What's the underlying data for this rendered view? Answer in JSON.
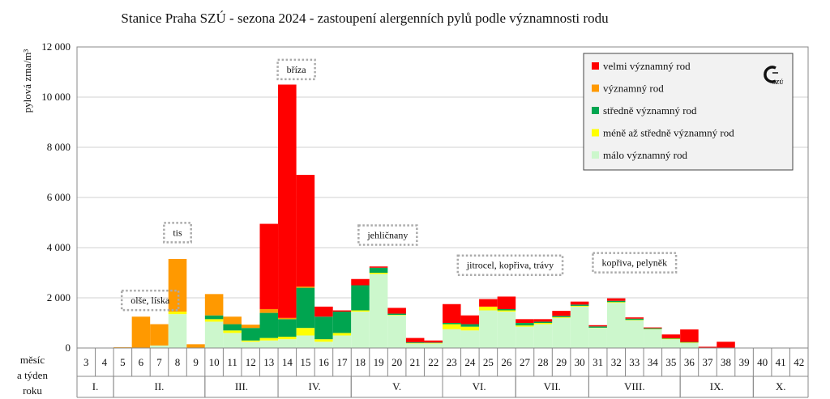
{
  "chart_data": {
    "type": "bar",
    "stacked": true,
    "title": "Stanice Praha SZÚ - sezona 2024 - zastoupení alergenních pylů podle významnosti rodu",
    "ylabel": "pylová zrna/m³",
    "ylim": [
      0,
      12000
    ],
    "yticks": [
      0,
      2000,
      4000,
      6000,
      8000,
      10000,
      12000
    ],
    "ytick_labels": [
      "0",
      "2 000",
      "4 000",
      "6 000",
      "8 000",
      "10 000",
      "12 000"
    ],
    "grid": true,
    "legend_position": "top-right",
    "xlabel_lines": [
      "měsíc",
      "a týden",
      "roku"
    ],
    "categories": [
      3,
      4,
      5,
      6,
      7,
      8,
      9,
      10,
      11,
      12,
      13,
      14,
      15,
      16,
      17,
      18,
      19,
      20,
      21,
      22,
      23,
      24,
      25,
      26,
      27,
      28,
      29,
      30,
      31,
      32,
      33,
      34,
      35,
      36,
      37,
      38,
      39,
      40,
      41,
      42
    ],
    "months": [
      {
        "label": "I.",
        "from": 3,
        "to": 4
      },
      {
        "label": "II.",
        "from": 5,
        "to": 9
      },
      {
        "label": "III.",
        "from": 10,
        "to": 13
      },
      {
        "label": "IV.",
        "from": 14,
        "to": 17
      },
      {
        "label": "V.",
        "from": 18,
        "to": 22
      },
      {
        "label": "VI.",
        "from": 23,
        "to": 26
      },
      {
        "label": "VII.",
        "from": 27,
        "to": 30
      },
      {
        "label": "VIII.",
        "from": 31,
        "to": 35
      },
      {
        "label": "IX.",
        "from": 36,
        "to": 39
      },
      {
        "label": "X.",
        "from": 40,
        "to": 42
      }
    ],
    "series": [
      {
        "name": "málo významný rod",
        "color": "#ccf7cc",
        "values": [
          0,
          0,
          0,
          0,
          100,
          1350,
          0,
          1050,
          600,
          250,
          300,
          350,
          500,
          250,
          500,
          1450,
          2950,
          1300,
          180,
          180,
          750,
          700,
          1500,
          1450,
          850,
          950,
          1200,
          1650,
          800,
          1800,
          1100,
          750,
          350,
          200,
          0,
          0,
          0,
          0,
          0,
          0
        ]
      },
      {
        "name": "méně až středně významný rod",
        "color": "#ffff00",
        "values": [
          0,
          0,
          0,
          0,
          0,
          100,
          0,
          100,
          100,
          50,
          100,
          100,
          300,
          100,
          100,
          50,
          50,
          20,
          20,
          20,
          200,
          150,
          150,
          50,
          50,
          50,
          30,
          30,
          10,
          30,
          20,
          10,
          20,
          20,
          0,
          0,
          0,
          0,
          0,
          0
        ]
      },
      {
        "name": "středně významný rod",
        "color": "#00a550",
        "values": [
          0,
          0,
          0,
          0,
          0,
          0,
          0,
          150,
          250,
          500,
          1000,
          700,
          1600,
          900,
          850,
          1000,
          200,
          50,
          30,
          20,
          50,
          100,
          0,
          50,
          100,
          50,
          50,
          50,
          50,
          50,
          50,
          30,
          20,
          20,
          0,
          0,
          0,
          0,
          0,
          0
        ]
      },
      {
        "name": "významný rod",
        "color": "#ff9900",
        "values": [
          0,
          0,
          30,
          1250,
          850,
          2100,
          150,
          850,
          300,
          130,
          150,
          50,
          50,
          0,
          0,
          0,
          0,
          0,
          0,
          0,
          0,
          0,
          0,
          0,
          0,
          0,
          0,
          0,
          0,
          0,
          0,
          0,
          0,
          0,
          0,
          0,
          0,
          0,
          0,
          0
        ]
      },
      {
        "name": "velmi významný rod",
        "color": "#ff0000",
        "values": [
          0,
          0,
          0,
          0,
          0,
          0,
          0,
          0,
          0,
          0,
          3400,
          9300,
          4450,
          400,
          50,
          250,
          50,
          230,
          170,
          80,
          750,
          350,
          300,
          500,
          150,
          100,
          200,
          120,
          50,
          100,
          50,
          30,
          150,
          500,
          50,
          250,
          0,
          0,
          0,
          0
        ]
      }
    ],
    "annotations": [
      {
        "text": "olše, líska",
        "week": 6.5,
        "y": 1900
      },
      {
        "text": "tis",
        "week": 8.0,
        "y": 4600
      },
      {
        "text": "bříza",
        "week": 14.5,
        "y": 11100
      },
      {
        "text": "jehličnany",
        "week": 19.5,
        "y": 4500
      },
      {
        "text": "jitrocel, kopřiva, trávy",
        "week": 26.2,
        "y": 3300
      },
      {
        "text": "kopřiva,  pelyněk",
        "week": 33.0,
        "y": 3400
      }
    ]
  },
  "legend": {
    "order": [
      4,
      3,
      2,
      1,
      0
    ],
    "logo_text": "SZÚ"
  }
}
